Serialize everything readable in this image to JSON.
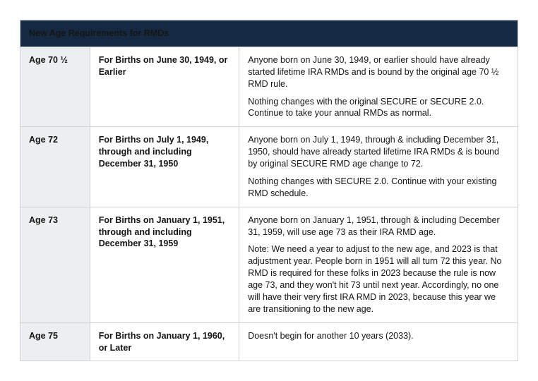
{
  "title": "New Age Requirements for RMDs",
  "colors": {
    "header_bg": "#152a42",
    "header_text": "#ffffff",
    "age_col_bg": "#eceef0",
    "border": "#cfd2d6",
    "body_text": "#151515"
  },
  "rows": [
    {
      "age": "Age 70 ½",
      "birth": "For Births on June 30, 1949, or Earlier",
      "desc": [
        "Anyone born on June 30, 1949, or earlier should have already started lifetime IRA RMDs and is bound by the original age 70 ½ RMD rule.",
        "Nothing changes with the original SECURE or SECURE 2.0. Continue to take your annual RMDs as normal."
      ]
    },
    {
      "age": "Age 72",
      "birth": "For Births on July 1, 1949, through and including December 31, 1950",
      "desc": [
        "Anyone born on July 1, 1949, through & including December 31, 1950, should have already started lifetime IRA RMDs & is bound by original SECURE RMD age change to 72.",
        "Nothing changes with SECURE 2.0. Continue with your existing RMD schedule."
      ]
    },
    {
      "age": "Age 73",
      "birth": "For Births on January 1, 1951, through and including December 31, 1959",
      "desc": [
        "Anyone born on January 1, 1951, through & including December 31, 1959, will use age 73 as their IRA RMD age.",
        "Note: We need a year to adjust to the new age, and 2023 is that adjustment year. People born in 1951 will all turn 72 this year. No RMD is required for these folks in 2023 because the rule is now age 73, and they won't hit 73 until next year. Accordingly, no one will have their very first IRA RMD in 2023, because this year we are transitioning to the new age."
      ]
    },
    {
      "age": "Age 75",
      "birth": "For Births on January 1, 1960, or Later",
      "desc": [
        "Doesn't begin for another 10 years (2033)."
      ]
    }
  ]
}
